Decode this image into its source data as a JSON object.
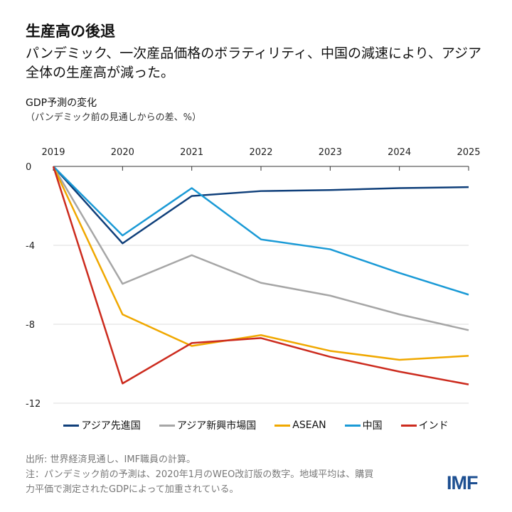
{
  "title": "生産高の後退",
  "subtitle": "パンデミック、一次産品価格のボラティリティ、中国の減速により、アジア全体の生産高が減った。",
  "chart_data": {
    "type": "line",
    "ylabel": "GDP予測の変化",
    "ylabel_sub": "（パンデミック前の見通しからの差、%）",
    "x": [
      "2019",
      "2020",
      "2021",
      "2022",
      "2023",
      "2024",
      "2025"
    ],
    "ylim": [
      -12,
      0
    ],
    "yticks": [
      "0",
      "-4",
      "-8",
      "-12"
    ],
    "ytick_values": [
      0,
      -4,
      -8,
      -12
    ],
    "grid": true,
    "legend_position": "bottom",
    "series": [
      {
        "name": "アジア先進国",
        "color": "#0f3f7a",
        "values": [
          0,
          -3.9,
          -1.5,
          -1.25,
          -1.2,
          -1.1,
          -1.05
        ]
      },
      {
        "name": "アジア新興市場国",
        "color": "#a6a6a6",
        "values": [
          0,
          -5.95,
          -4.5,
          -5.9,
          -6.55,
          -7.5,
          -8.3
        ]
      },
      {
        "name": "ASEAN",
        "color": "#f0a800",
        "values": [
          0,
          -7.5,
          -9.1,
          -8.55,
          -9.35,
          -9.8,
          -9.6
        ]
      },
      {
        "name": "中国",
        "color": "#1a9ad6",
        "values": [
          0,
          -3.5,
          -1.1,
          -3.7,
          -4.2,
          -5.4,
          -6.5
        ]
      },
      {
        "name": "インド",
        "color": "#cc2b1e",
        "values": [
          0,
          -11.0,
          -8.95,
          -8.7,
          -9.65,
          -10.4,
          -11.05
        ]
      }
    ]
  },
  "footer": {
    "source": "出所: 世界経済見通し、IMF職員の計算。",
    "note_line1": "注：パンデミック前の予測は、2020年1月のWEO改訂版の数字。地域平均は、購買",
    "note_line2": "力平価で測定されたGDPによって加重されている。"
  },
  "logo": "IMF"
}
